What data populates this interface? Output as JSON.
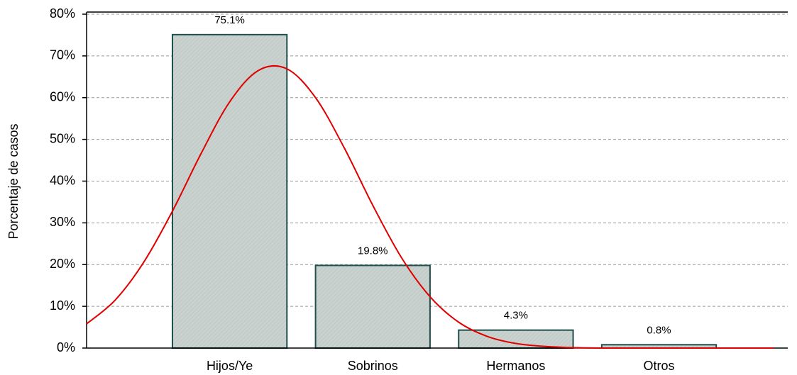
{
  "chart_data": {
    "type": "bar",
    "y_label": "Porcentaje de casos",
    "categories": [
      "Hijos/Ye",
      "Sobrinos",
      "Hermanos",
      "Otros"
    ],
    "values": [
      75.1,
      19.8,
      4.3,
      0.8
    ],
    "value_labels": [
      "75.1%",
      "19.8%",
      "4.3%",
      "0.8%"
    ],
    "color": "#c9d2ce",
    "edge_color": "#1f4f4a",
    "ylim": [
      0,
      80
    ],
    "yticks": [
      {
        "value": 0,
        "label": "0%"
      },
      {
        "value": 10,
        "label": "10%"
      },
      {
        "value": 20,
        "label": "20%"
      },
      {
        "value": 30,
        "label": "30%"
      },
      {
        "value": 40,
        "label": "40%"
      },
      {
        "value": 50,
        "label": "50%"
      },
      {
        "value": 60,
        "label": "60%"
      },
      {
        "value": 70,
        "label": "70%"
      },
      {
        "value": 80,
        "label": "80%"
      }
    ],
    "xlim": [
      -1,
      3.9
    ],
    "grid": true,
    "curve": {
      "type": "line",
      "color": "#e00000",
      "x": [
        -1.0,
        -0.8,
        -0.6,
        -0.4,
        -0.2,
        0.0,
        0.2,
        0.4,
        0.6,
        0.8,
        1.0,
        1.2,
        1.4,
        1.6,
        1.8,
        2.0,
        2.2,
        2.4,
        2.6,
        2.8,
        3.0,
        3.2,
        3.4,
        3.6,
        3.8
      ],
      "values": [
        5.8,
        11.5,
        20.6,
        32.8,
        46.6,
        59.0,
        66.5,
        66.9,
        60.0,
        48.0,
        34.2,
        21.7,
        12.3,
        6.2,
        2.8,
        1.1,
        0.4,
        0.1,
        0,
        0,
        0,
        0,
        0,
        0,
        0
      ]
    }
  }
}
